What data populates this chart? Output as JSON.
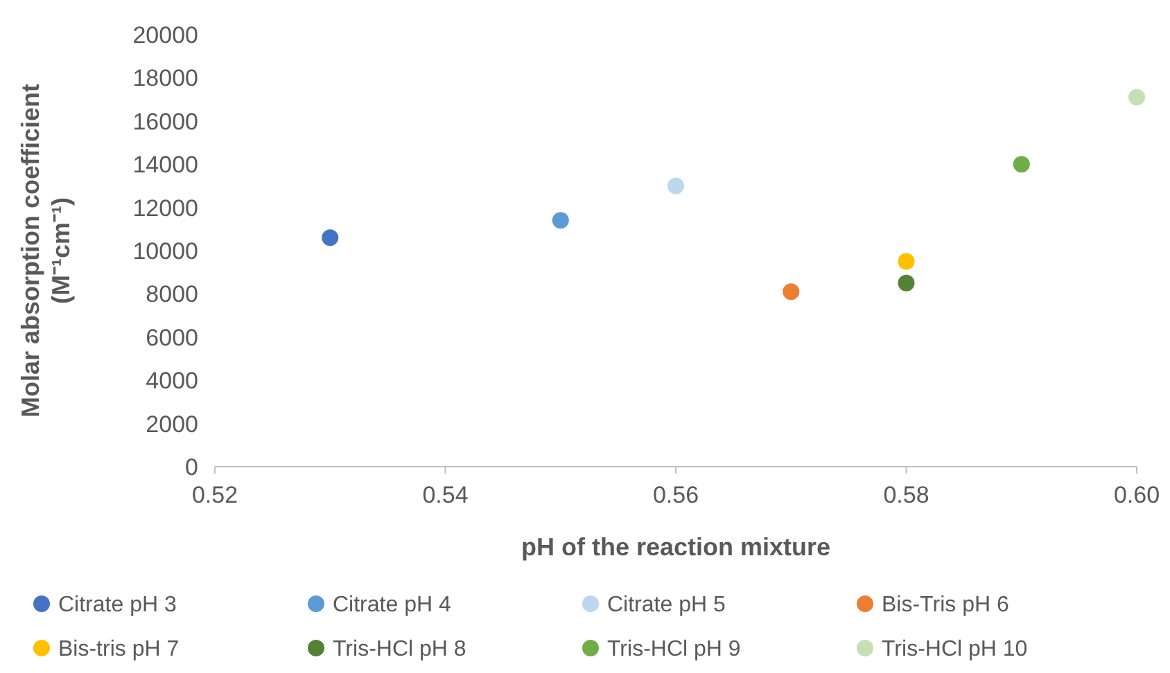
{
  "chart_data": {
    "type": "scatter",
    "xlabel": "pH of the reaction mixture",
    "ylabel": "Molar absorption coefficient (M⁻¹cm⁻¹)",
    "xlim": [
      0.52,
      0.6
    ],
    "xticks": [
      0.52,
      0.54,
      0.56,
      0.58,
      {
        "value": 0.6,
        "label": "0.60"
      }
    ],
    "ylim": [
      0,
      20000
    ],
    "yticks": [
      0,
      2000,
      4000,
      6000,
      8000,
      10000,
      12000,
      14000,
      16000,
      18000,
      20000
    ],
    "grid": false,
    "legend": "bottom",
    "marker": "circle",
    "series": [
      {
        "name": "Citrate pH 3",
        "color": "#4472c4",
        "x": [
          0.53
        ],
        "values": [
          10600
        ]
      },
      {
        "name": "Citrate pH 4",
        "color": "#5b9bd5",
        "x": [
          0.55
        ],
        "values": [
          11400
        ]
      },
      {
        "name": "Citrate pH 5",
        "color": "#bdd7ee",
        "x": [
          0.56
        ],
        "values": [
          13000
        ]
      },
      {
        "name": "Bis-Tris pH 6",
        "color": "#ed7d31",
        "x": [
          0.57
        ],
        "values": [
          8100
        ]
      },
      {
        "name": "Bis-tris pH 7",
        "color": "#ffc000",
        "x": [
          0.58
        ],
        "values": [
          9500
        ]
      },
      {
        "name": "Tris-HCl pH 8",
        "color": "#548235",
        "x": [
          0.58
        ],
        "values": [
          8500
        ]
      },
      {
        "name": "Tris-HCl pH 9",
        "color": "#70ad47",
        "x": [
          0.59
        ],
        "values": [
          14000
        ]
      },
      {
        "name": "Tris-HCl pH 10",
        "color": "#c5e0b4",
        "x": [
          0.6
        ],
        "values": [
          17100
        ]
      }
    ]
  }
}
